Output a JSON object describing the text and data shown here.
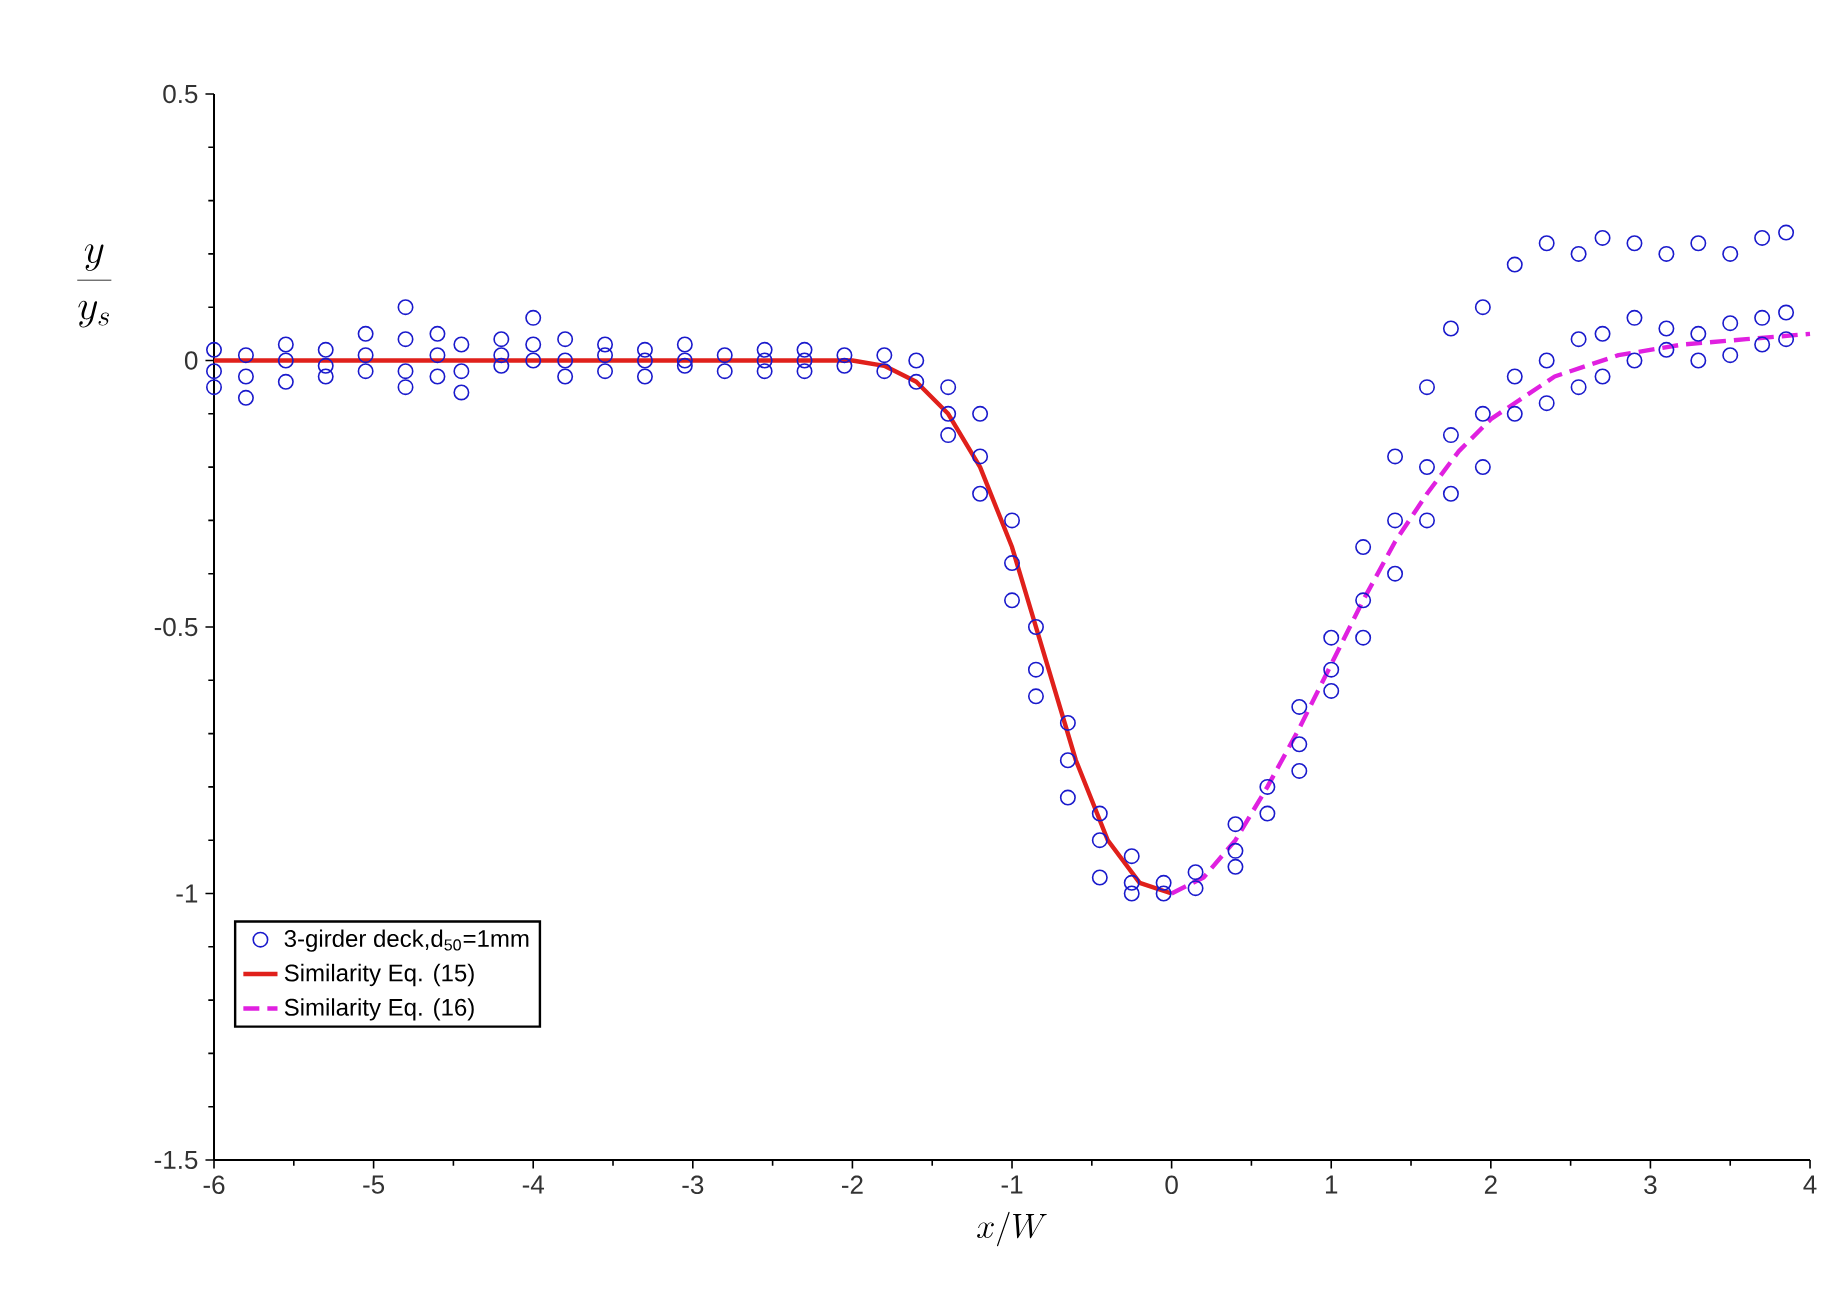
{
  "chart_data": {
    "type": "scatter",
    "xlabel": "x/W",
    "ylabel": "\\frac{y}{y_s}",
    "xlim": [
      -6,
      4
    ],
    "ylim": [
      -1.5,
      0.5
    ],
    "xticks": [
      -6,
      -5,
      -4,
      -3,
      -2,
      -1,
      0,
      1,
      2,
      3,
      4
    ],
    "yticks": [
      0.5,
      0,
      -0.5,
      -1,
      -1.5
    ],
    "grid": false,
    "legend": "bottom left",
    "series": [
      {
        "name": "3-girder deck,d$_{50}$=1mm",
        "type": "scatter",
        "marker": "circle",
        "color": "#1a1acc",
        "x": [
          -6.0,
          -6.0,
          -6.0,
          -5.8,
          -5.8,
          -5.8,
          -5.55,
          -5.55,
          -5.55,
          -5.3,
          -5.3,
          -5.3,
          -5.05,
          -5.05,
          -5.05,
          -4.8,
          -4.8,
          -4.8,
          -4.8,
          -4.6,
          -4.6,
          -4.6,
          -4.45,
          -4.45,
          -4.45,
          -4.2,
          -4.2,
          -4.2,
          -4.0,
          -4.0,
          -4.0,
          -3.8,
          -3.8,
          -3.8,
          -3.55,
          -3.55,
          -3.55,
          -3.3,
          -3.3,
          -3.3,
          -3.05,
          -3.05,
          -3.05,
          -2.8,
          -2.8,
          -2.55,
          -2.55,
          -2.55,
          -2.3,
          -2.3,
          -2.3,
          -2.05,
          -2.05,
          -1.8,
          -1.8,
          -1.6,
          -1.6,
          -1.4,
          -1.4,
          -1.4,
          -1.2,
          -1.2,
          -1.2,
          -1.0,
          -1.0,
          -1.0,
          -0.85,
          -0.85,
          -0.85,
          -0.65,
          -0.65,
          -0.65,
          -0.45,
          -0.45,
          -0.45,
          -0.25,
          -0.25,
          -0.25,
          -0.05,
          -0.05,
          0.15,
          0.15,
          0.4,
          0.4,
          0.4,
          0.6,
          0.6,
          0.8,
          0.8,
          0.8,
          1.0,
          1.0,
          1.0,
          1.2,
          1.2,
          1.2,
          1.4,
          1.4,
          1.4,
          1.6,
          1.6,
          1.6,
          1.75,
          1.75,
          1.75,
          1.95,
          1.95,
          1.95,
          2.15,
          2.15,
          2.15,
          2.35,
          2.35,
          2.35,
          2.55,
          2.55,
          2.55,
          2.7,
          2.7,
          2.7,
          2.9,
          2.9,
          2.9,
          3.1,
          3.1,
          3.1,
          3.3,
          3.3,
          3.3,
          3.5,
          3.5,
          3.5,
          3.7,
          3.7,
          3.7,
          3.85,
          3.85,
          3.85
        ],
        "values": [
          0.02,
          -0.02,
          -0.05,
          0.01,
          -0.03,
          -0.07,
          0.03,
          0,
          -0.04,
          0.02,
          -0.01,
          -0.03,
          0.05,
          0.01,
          -0.02,
          0.1,
          0.04,
          -0.02,
          -0.05,
          0.05,
          0.01,
          -0.03,
          0.03,
          -0.02,
          -0.06,
          0.04,
          0.01,
          -0.01,
          0.08,
          0.03,
          0,
          0.04,
          0,
          -0.03,
          0.03,
          0.01,
          -0.02,
          0.02,
          0,
          -0.03,
          0.03,
          0,
          -0.01,
          0.01,
          -0.02,
          0.02,
          0,
          -0.02,
          0.02,
          0,
          -0.02,
          0.01,
          -0.01,
          0.01,
          -0.02,
          0,
          -0.04,
          -0.05,
          -0.1,
          -0.14,
          -0.1,
          -0.18,
          -0.25,
          -0.3,
          -0.38,
          -0.45,
          -0.5,
          -0.58,
          -0.63,
          -0.68,
          -0.75,
          -0.82,
          -0.85,
          -0.9,
          -0.97,
          -0.93,
          -0.98,
          -1.0,
          -0.98,
          -1.0,
          -0.96,
          -0.99,
          -0.87,
          -0.92,
          -0.95,
          -0.8,
          -0.85,
          -0.65,
          -0.72,
          -0.77,
          -0.52,
          -0.58,
          -0.62,
          -0.35,
          -0.45,
          -0.52,
          -0.18,
          -0.3,
          -0.4,
          -0.05,
          -0.2,
          -0.3,
          0.06,
          -0.14,
          -0.25,
          0.1,
          -0.1,
          -0.2,
          0.18,
          -0.03,
          -0.1,
          0.22,
          0,
          -0.08,
          0.2,
          0.04,
          -0.05,
          0.23,
          0.05,
          -0.03,
          0.22,
          0.08,
          0,
          0.2,
          0.06,
          0.02,
          0.22,
          0.05,
          0,
          0.2,
          0.07,
          0.01,
          0.23,
          0.08,
          0.03,
          0.24,
          0.09,
          0.04
        ]
      },
      {
        "name": "Similarity Eq. (15)",
        "type": "line",
        "line_style": "solid",
        "color": "#e0201b",
        "x": [
          -6,
          -2,
          -1.8,
          -1.6,
          -1.4,
          -1.2,
          -1.0,
          -0.8,
          -0.6,
          -0.4,
          -0.2,
          0
        ],
        "values": [
          0,
          0,
          -0.01,
          -0.04,
          -0.1,
          -0.2,
          -0.35,
          -0.55,
          -0.75,
          -0.9,
          -0.98,
          -1
        ]
      },
      {
        "name": "Similarity Eq. (16)",
        "type": "line",
        "line_style": "dashed",
        "color": "#e020e0",
        "x": [
          0,
          0.2,
          0.4,
          0.6,
          0.8,
          1.0,
          1.2,
          1.4,
          1.6,
          1.8,
          2.0,
          2.4,
          2.8,
          3.2,
          3.6,
          4
        ],
        "values": [
          -1,
          -0.97,
          -0.9,
          -0.8,
          -0.69,
          -0.57,
          -0.45,
          -0.34,
          -0.25,
          -0.17,
          -0.11,
          -0.03,
          0.01,
          0.03,
          0.04,
          0.05
        ]
      }
    ]
  }
}
